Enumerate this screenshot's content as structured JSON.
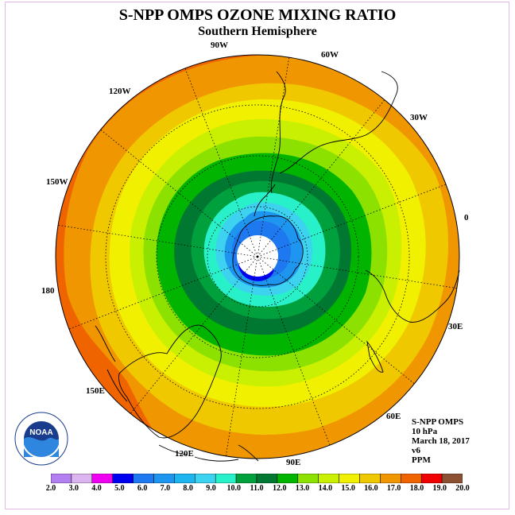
{
  "title": "S-NPP OMPS OZONE MIXING RATIO",
  "subtitle": "Southern Hemisphere",
  "longitude_labels": [
    {
      "id": "lon-90w",
      "text": "90W"
    },
    {
      "id": "lon-60w",
      "text": "60W"
    },
    {
      "id": "lon-30w",
      "text": "30W"
    },
    {
      "id": "lon-0",
      "text": "0"
    },
    {
      "id": "lon-30e",
      "text": "30E"
    },
    {
      "id": "lon-60e",
      "text": "60E"
    },
    {
      "id": "lon-90e",
      "text": "90E"
    },
    {
      "id": "lon-120e",
      "text": "120E"
    },
    {
      "id": "lon-150e",
      "text": "150E"
    },
    {
      "id": "lon-180",
      "text": "180"
    },
    {
      "id": "lon-150w",
      "text": "150W"
    },
    {
      "id": "lon-120w",
      "text": "120W"
    }
  ],
  "info": {
    "instrument": "S-NPP OMPS",
    "level": "10 hPa",
    "date": "March 18, 2017",
    "version": "v6",
    "units": "PPM"
  },
  "logo_text": "NOAA",
  "colorbar": {
    "ticks": [
      "2.0",
      "3.0",
      "4.0",
      "5.0",
      "6.0",
      "7.0",
      "8.0",
      "9.0",
      "10.0",
      "11.0",
      "12.0",
      "13.0",
      "14.0",
      "15.0",
      "16.0",
      "17.0",
      "18.0",
      "19.0",
      "20.0"
    ],
    "colors": [
      "#b47ff0",
      "#dcb4f0",
      "#f000f0",
      "#0000f0",
      "#1e78f0",
      "#1e96f0",
      "#1eb4f0",
      "#3cd2f0",
      "#28f0c8",
      "#00a03c",
      "#007832",
      "#00b400",
      "#8ce100",
      "#c8f000",
      "#f0f000",
      "#f0c800",
      "#f09600",
      "#f06400",
      "#f00000",
      "#8c5032"
    ]
  },
  "map_colors": {
    "pole": "#ffffff",
    "band_3_4": "#0000f0",
    "band_4_5": "#1e78f0",
    "band_5_6": "#1e96f0",
    "band_7_8": "#3cd2f0",
    "band_8_9": "#28f0c8",
    "band_9_10": "#00a03c",
    "band_10_11": "#007832",
    "band_11_12": "#00b400",
    "band_12_13": "#8ce100",
    "band_13_14": "#c8f000",
    "band_14_15": "#f0f000",
    "band_15_16": "#f0c800",
    "band_16_17": "#f09600",
    "band_17_18": "#f06400"
  }
}
